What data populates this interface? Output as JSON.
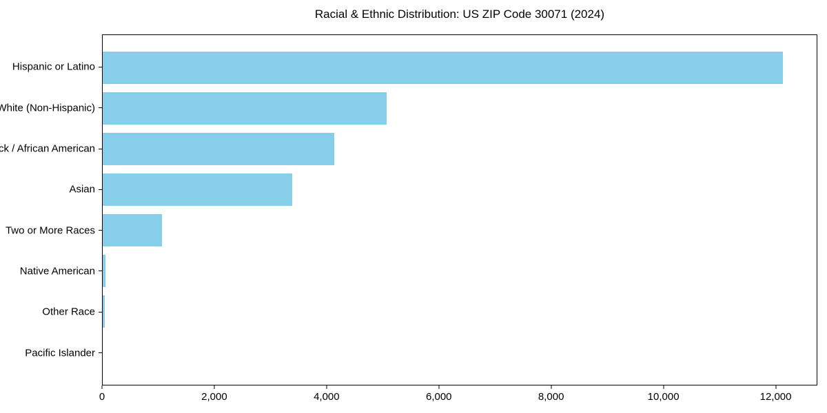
{
  "title": "Racial & Ethnic Distribution: US ZIP Code 30071 (2024)",
  "chart_data": {
    "type": "bar",
    "orientation": "horizontal",
    "title": "Racial & Ethnic Distribution: US ZIP Code 30071 (2024)",
    "categories": [
      "Hispanic or Latino",
      "White (Non-Hispanic)",
      "Black / African American",
      "Asian",
      "Two or More Races",
      "Native American",
      "Other Race",
      "Pacific Islander"
    ],
    "values": [
      12135,
      5065,
      4130,
      3380,
      1060,
      55,
      40,
      0
    ],
    "xlabel": "",
    "ylabel": "",
    "xlim": [
      0,
      12742
    ],
    "xticks": [
      0,
      2000,
      4000,
      6000,
      8000,
      10000,
      12000
    ],
    "xtick_labels": [
      "0",
      "2,000",
      "4,000",
      "6,000",
      "8,000",
      "10,000",
      "12,000"
    ],
    "bar_color": "#87CEEB",
    "grid": false,
    "legend": null,
    "background_color": "#ffffff",
    "text_color": "#000000"
  }
}
